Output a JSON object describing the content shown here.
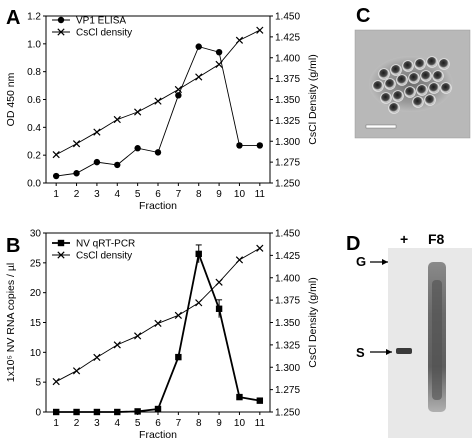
{
  "panels": {
    "A": {
      "letter": "A"
    },
    "B": {
      "letter": "B"
    },
    "C": {
      "letter": "C"
    },
    "D": {
      "letter": "D"
    }
  },
  "chart_data": [
    {
      "panel": "A",
      "type": "line",
      "xlabel": "Fraction",
      "ylabel": "OD 450 nm",
      "y2label": "CsCl Density (g/ml)",
      "x": [
        1,
        2,
        3,
        4,
        5,
        6,
        7,
        8,
        9,
        10,
        11
      ],
      "xlim": [
        0.5,
        11.5
      ],
      "ylim": [
        0,
        1.2
      ],
      "y2lim": [
        1.25,
        1.45
      ],
      "yticks": [
        "0.0",
        "0.2",
        "0.4",
        "0.6",
        "0.8",
        "1.0",
        "1.2"
      ],
      "y2ticks": [
        "1.250",
        "1.275",
        "1.300",
        "1.325",
        "1.350",
        "1.375",
        "1.400",
        "1.425",
        "1.450"
      ],
      "grid": false,
      "legend": "top-left",
      "series": [
        {
          "name": "VP1 ELISA",
          "axis": "left",
          "marker": "circle",
          "values": [
            0.05,
            0.07,
            0.15,
            0.13,
            0.25,
            0.22,
            0.63,
            0.98,
            0.94,
            0.27,
            0.27
          ]
        },
        {
          "name": "CsCl density",
          "axis": "right",
          "marker": "x",
          "values": [
            1.284,
            1.297,
            1.311,
            1.326,
            1.335,
            1.348,
            1.362,
            1.377,
            1.392,
            1.421,
            1.433
          ]
        }
      ]
    },
    {
      "panel": "B",
      "type": "line",
      "xlabel": "Fraction",
      "ylabel": "1x10⁵ NV RNA copies / µl",
      "y2label": "CsCl Density (g/ml)",
      "x": [
        1,
        2,
        3,
        4,
        5,
        6,
        7,
        8,
        9,
        10,
        11
      ],
      "xlim": [
        0.5,
        11.5
      ],
      "ylim": [
        0,
        30
      ],
      "y2lim": [
        1.25,
        1.45
      ],
      "yticks": [
        "0",
        "5",
        "10",
        "15",
        "20",
        "25",
        "30"
      ],
      "y2ticks": [
        "1.250",
        "1.275",
        "1.300",
        "1.325",
        "1.350",
        "1.375",
        "1.400",
        "1.425",
        "1.450"
      ],
      "grid": false,
      "legend": "top-left",
      "series": [
        {
          "name": "NV qRT-PCR",
          "axis": "left",
          "marker": "square",
          "values": [
            0,
            0,
            0,
            0,
            0.1,
            0.5,
            9.2,
            26.5,
            17.3,
            2.5,
            1.9
          ],
          "errors": [
            0,
            0,
            0,
            0,
            0,
            0,
            0,
            1.5,
            1.5,
            0,
            0
          ]
        },
        {
          "name": "CsCl density",
          "axis": "right",
          "marker": "x",
          "values": [
            1.284,
            1.296,
            1.311,
            1.325,
            1.335,
            1.349,
            1.358,
            1.372,
            1.395,
            1.42,
            1.433
          ]
        }
      ]
    }
  ],
  "micrograph": {
    "panel": "C"
  },
  "gel": {
    "panel": "D",
    "lane_labels": [
      "+",
      "F8"
    ],
    "band_labels": [
      "G",
      "S"
    ]
  }
}
